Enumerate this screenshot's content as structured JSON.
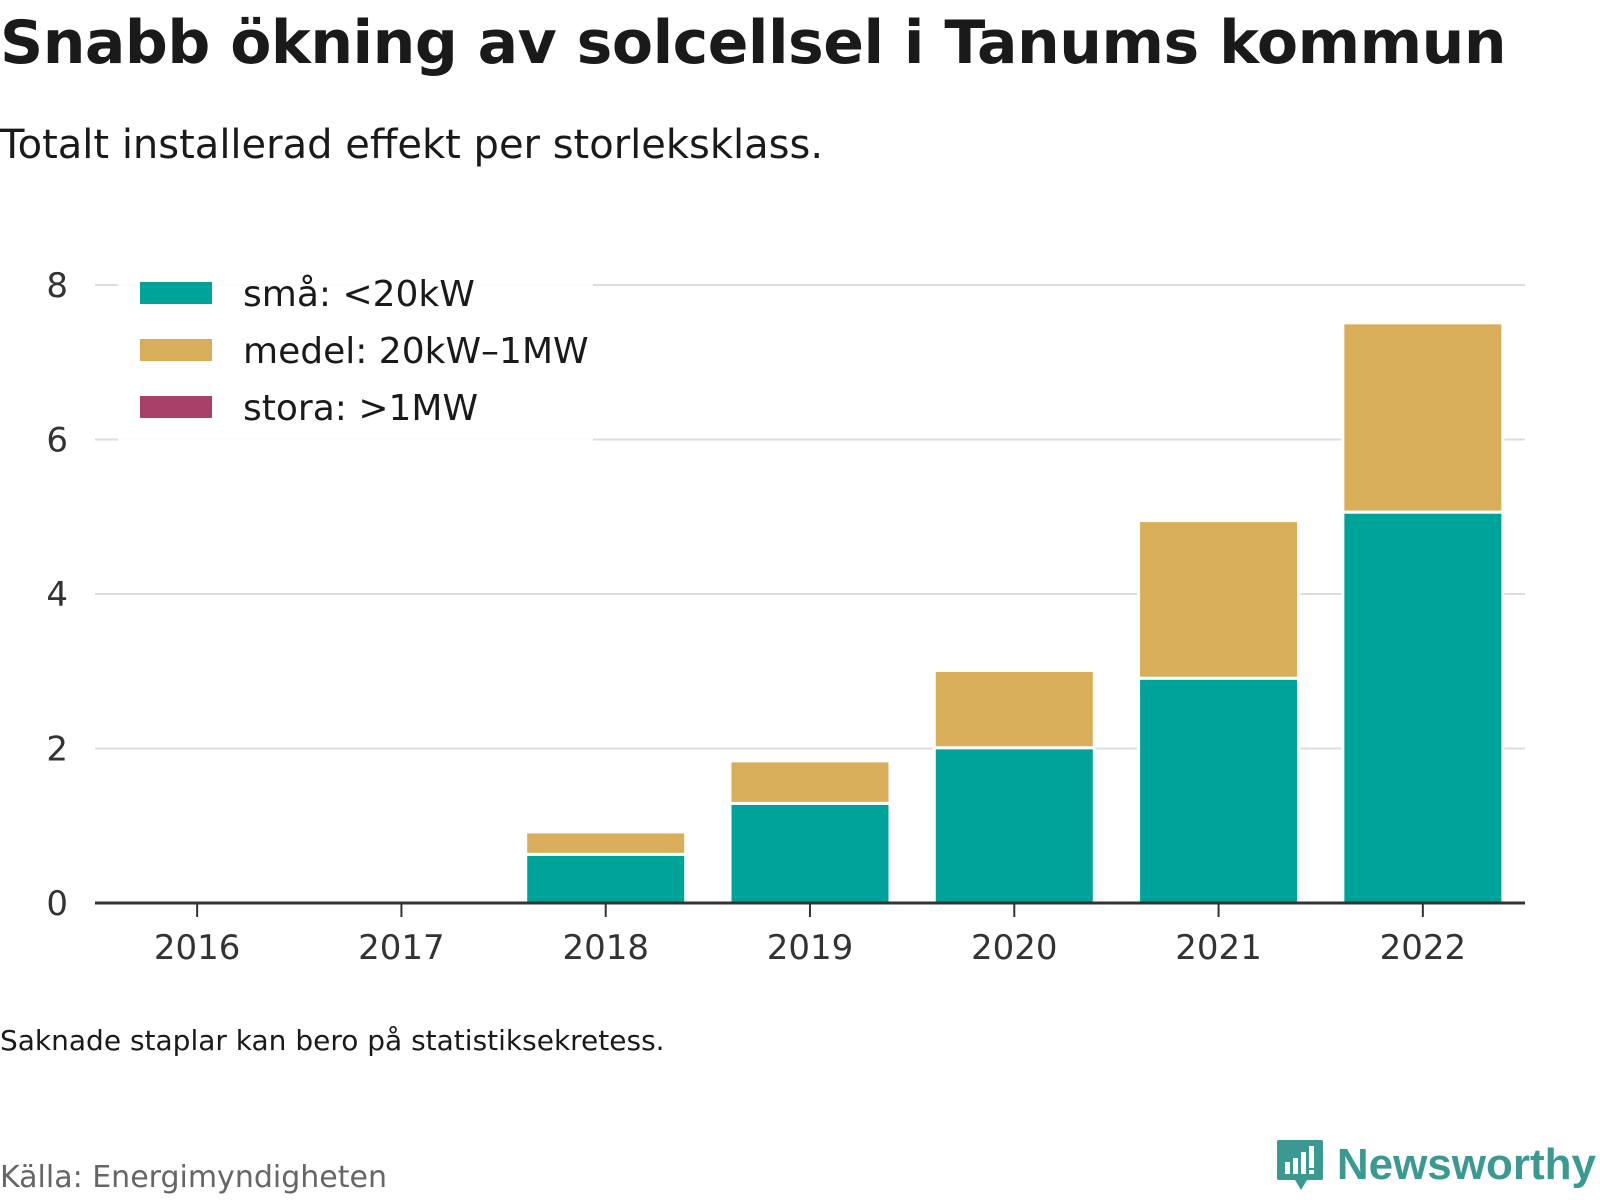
{
  "title": "Snabb ökning av solcellsel i Tanums kommun",
  "subtitle": "Totalt installerad effekt per storleksklass.",
  "note": "Saknade staplar kan bero på statistiksekretess.",
  "source": "Källa: Energimyndigheten",
  "brand": {
    "name": "Newsworthy",
    "logo_icon": "newsworthy-bar-chart-logo"
  },
  "chart_data": {
    "type": "bar",
    "stacked": true,
    "categories": [
      "2016",
      "2017",
      "2018",
      "2019",
      "2020",
      "2021",
      "2022"
    ],
    "series": [
      {
        "name": "små: <20kW",
        "color": "#00a399",
        "values": [
          0,
          0,
          0.63,
          1.29,
          2.01,
          2.91,
          5.06
        ]
      },
      {
        "name": "medel: 20kW–1MW",
        "color": "#d9ae5a",
        "values": [
          0,
          0,
          0.29,
          0.55,
          1.0,
          2.04,
          2.45
        ]
      },
      {
        "name": "stora: >1MW",
        "color": "#a8406a",
        "values": [
          0,
          0,
          0,
          0,
          0,
          0,
          0
        ]
      }
    ],
    "ylim": [
      0,
      8
    ],
    "yticks": [
      0,
      2,
      4,
      6,
      8
    ],
    "grid": true,
    "legend": "top-left",
    "xlabel": "",
    "ylabel": ""
  }
}
